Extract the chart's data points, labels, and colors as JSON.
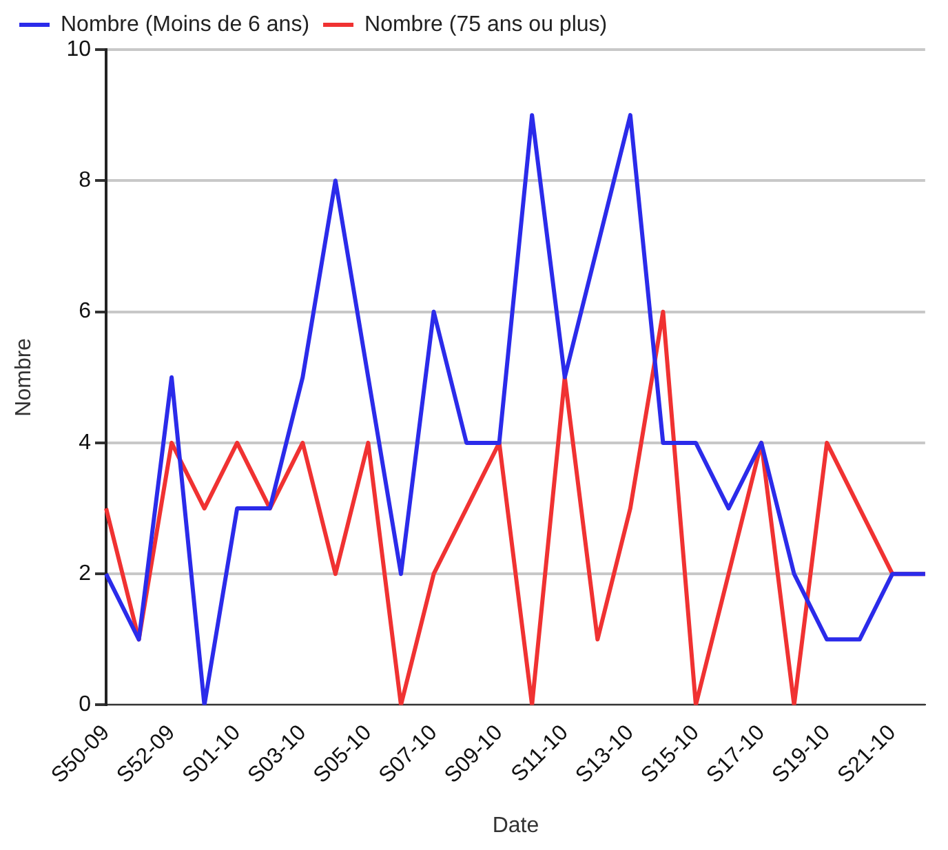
{
  "chart_data": {
    "type": "line",
    "xlabel": "Date",
    "ylabel": "Nombre",
    "categories": [
      "S50-09",
      null,
      "S52-09",
      null,
      "S01-10",
      null,
      "S03-10",
      null,
      "S05-10",
      null,
      "S07-10",
      null,
      "S09-10",
      null,
      "S11-10",
      null,
      "S13-10",
      null,
      "S15-10",
      null,
      "S17-10",
      null,
      "S19-10",
      null,
      "S21-10",
      null
    ],
    "series": [
      {
        "name": "Nombre (Moins de 6 ans)",
        "color": "#2b2bea",
        "values": [
          2,
          1,
          5,
          0,
          3,
          3,
          5,
          8,
          5,
          2,
          6,
          4,
          4,
          9,
          5,
          7,
          9,
          4,
          4,
          3,
          4,
          2,
          1,
          1,
          2,
          2
        ]
      },
      {
        "name": "Nombre (75 ans ou plus)",
        "color": "#f03232",
        "values": [
          3,
          1,
          4,
          3,
          4,
          3,
          4,
          2,
          4,
          0,
          2,
          3,
          4,
          0,
          5,
          1,
          3,
          6,
          0,
          2,
          4,
          0,
          4,
          3,
          2,
          2
        ]
      }
    ],
    "ylim": [
      0,
      10
    ],
    "yticks": [
      0,
      2,
      4,
      6,
      8,
      10
    ],
    "grid": "y",
    "legend": "top left",
    "marker": "none",
    "line_style": "solid"
  }
}
